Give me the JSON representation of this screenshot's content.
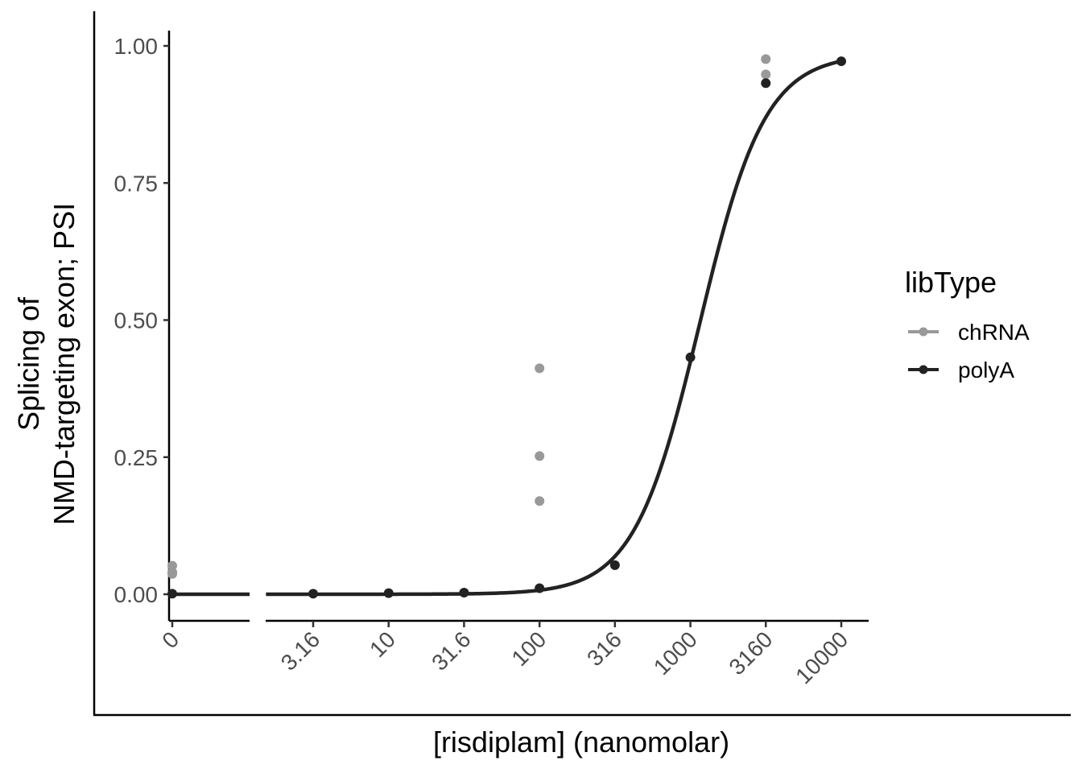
{
  "chart_data": {
    "type": "scatter",
    "xlabel": "[risdiplam] (nanomolar)",
    "ylabel_line1": "Splicing of",
    "ylabel_line2": "NMD-targeting exon; PSI",
    "x_scale": "log10 with separate zero panel",
    "ylim": [
      0,
      1
    ],
    "x_ticks": [
      {
        "value": 0,
        "label": "0"
      },
      {
        "value": 3.16,
        "label": "3.16"
      },
      {
        "value": 10,
        "label": "10"
      },
      {
        "value": 31.6,
        "label": "31.6"
      },
      {
        "value": 100,
        "label": "100"
      },
      {
        "value": 316,
        "label": "316"
      },
      {
        "value": 1000,
        "label": "1000"
      },
      {
        "value": 3160,
        "label": "3160"
      },
      {
        "value": 10000,
        "label": "10000"
      }
    ],
    "y_ticks": [
      {
        "value": 0,
        "label": "0.00"
      },
      {
        "value": 0.25,
        "label": "0.25"
      },
      {
        "value": 0.5,
        "label": "0.50"
      },
      {
        "value": 0.75,
        "label": "0.75"
      },
      {
        "value": 1,
        "label": "1.00"
      }
    ],
    "legend": {
      "title": "libType",
      "position": "right"
    },
    "series": [
      {
        "name": "chRNA",
        "color": "#999999",
        "points": [
          {
            "x": 0,
            "y": 0.052
          },
          {
            "x": 0,
            "y": 0.04
          },
          {
            "x": 0,
            "y": 0.037
          },
          {
            "x": 100,
            "y": 0.412
          },
          {
            "x": 100,
            "y": 0.252
          },
          {
            "x": 100,
            "y": 0.17
          },
          {
            "x": 3160,
            "y": 0.976
          },
          {
            "x": 3160,
            "y": 0.948
          }
        ]
      },
      {
        "name": "polyA",
        "color": "#222222",
        "points": [
          {
            "x": 0,
            "y": 0.001
          },
          {
            "x": 3.16,
            "y": 0.001
          },
          {
            "x": 10,
            "y": 0.002
          },
          {
            "x": 31.6,
            "y": 0.003
          },
          {
            "x": 100,
            "y": 0.011
          },
          {
            "x": 316,
            "y": 0.053
          },
          {
            "x": 1000,
            "y": 0.432
          },
          {
            "x": 3160,
            "y": 0.932
          },
          {
            "x": 10000,
            "y": 0.972
          }
        ],
        "fit": {
          "model": "logistic",
          "ec50": 1150,
          "hill": 2.0,
          "top": 0.985,
          "bottom": 0
        }
      }
    ]
  }
}
